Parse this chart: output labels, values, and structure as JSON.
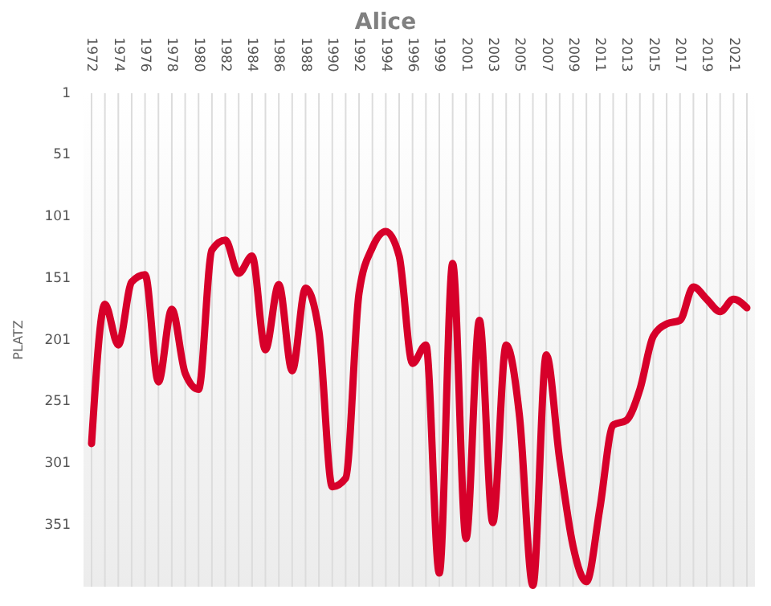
{
  "chart_data": {
    "type": "line",
    "title": "Alice",
    "ylabel": "PLATZ",
    "categories": [
      "1972",
      null,
      "1974",
      null,
      "1976",
      null,
      "1978",
      null,
      "1980",
      null,
      "1982",
      null,
      "1984",
      null,
      "1986",
      null,
      "1988",
      null,
      "1990",
      null,
      "1992",
      null,
      "1994",
      null,
      "1996",
      null,
      "1999",
      null,
      "2001",
      null,
      "2003",
      null,
      "2005",
      null,
      "2007",
      null,
      "2009",
      null,
      "2011",
      null,
      "2013",
      null,
      "2015",
      null,
      "2017",
      null,
      "2019",
      null,
      "2021",
      null
    ],
    "series": [
      {
        "color": "#d7002a",
        "values": [
          285,
          172,
          205,
          154,
          148,
          235,
          176,
          228,
          241,
          128,
          120,
          147,
          133,
          209,
          156,
          226,
          159,
          194,
          320,
          313,
          163,
          126,
          113,
          133,
          220,
          205,
          390,
          139,
          362,
          185,
          349,
          205,
          263,
          400,
          213,
          298,
          368,
          397,
          338,
          270,
          266,
          241,
          198,
          188,
          185,
          158,
          168,
          178,
          168,
          175
        ]
      }
    ],
    "ylim": [
      401,
      1
    ],
    "yticks": [
      1,
      51,
      101,
      151,
      201,
      251,
      301,
      351
    ],
    "grid": "x",
    "marker": "none",
    "line_style": "solid"
  }
}
